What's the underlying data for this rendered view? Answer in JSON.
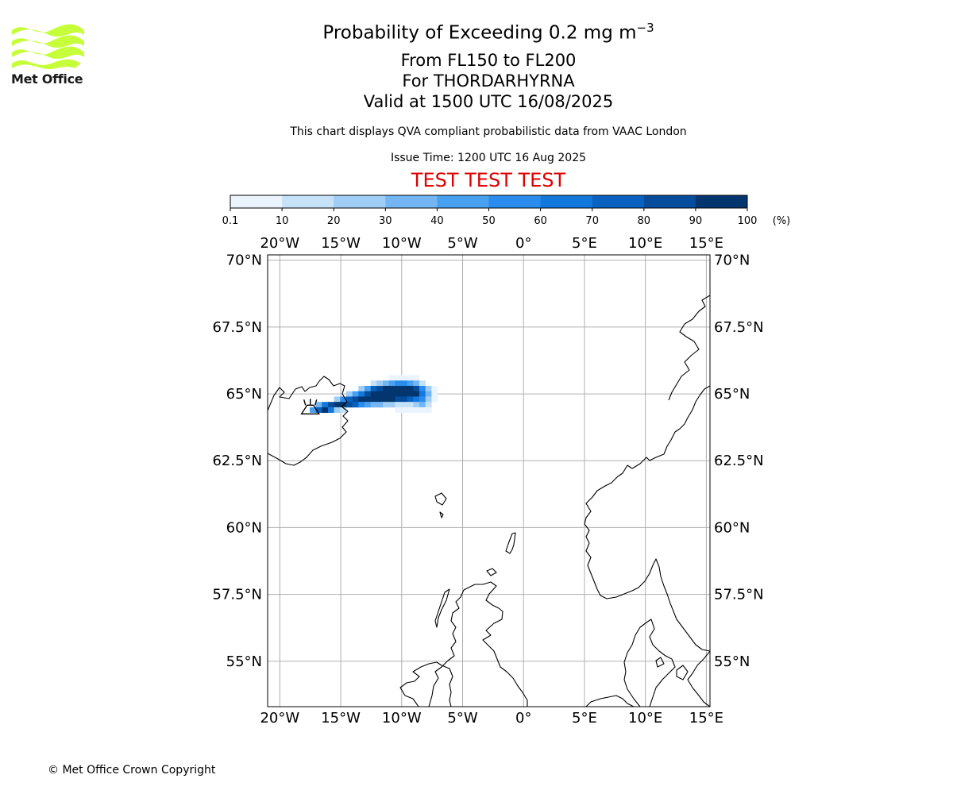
{
  "logo": {
    "name": "Met Office",
    "color": "#c6ff3a"
  },
  "titles": {
    "main": "Probability of Exceeding 0.2 mg m",
    "main_sup": "−3",
    "levels": "From FL150 to FL200",
    "volcano": "For THORDARHYRNA",
    "valid": "Valid at 1500 UTC 16/08/2025",
    "subtitle": "This chart displays QVA compliant probabilistic data from VAAC London",
    "issue": "Issue Time: 1200 UTC 16 Aug 2025",
    "test": "TEST TEST TEST"
  },
  "colorbar": {
    "ticks": [
      "0.1",
      "10",
      "20",
      "30",
      "40",
      "50",
      "60",
      "70",
      "80",
      "90",
      "100"
    ],
    "unit": "(%)",
    "colors": [
      "#ebf4fd",
      "#c6e2f9",
      "#9fcdf6",
      "#73b6f3",
      "#48a0f0",
      "#2a8ced",
      "#1378dc",
      "#0a62c0",
      "#064c9c",
      "#03366f"
    ]
  },
  "chart_data": {
    "type": "heatmap",
    "projection": "equirectangular",
    "lon_range": [
      -21,
      15.3
    ],
    "lat_range": [
      53.3,
      70.2
    ],
    "lon_ticks": [
      "20°W",
      "15°W",
      "10°W",
      "5°W",
      "0°",
      "5°E",
      "10°E",
      "15°E"
    ],
    "lon_tick_values": [
      -20,
      -15,
      -10,
      -5,
      0,
      5,
      10,
      15
    ],
    "lat_ticks": [
      "70°N",
      "67.5°N",
      "65°N",
      "62.5°N",
      "60°N",
      "57.5°N",
      "55°N"
    ],
    "lat_tick_values": [
      70,
      67.5,
      65,
      62.5,
      60,
      57.5,
      55
    ],
    "grid": true,
    "volcano": {
      "lon": -17.5,
      "lat": 64.4
    },
    "cells_unit": "probability %",
    "cell_size_deg": [
      0.5,
      0.2
    ],
    "cells": [
      [
        -10.8,
        65.6,
        5
      ],
      [
        -10.3,
        65.6,
        5
      ],
      [
        -9.8,
        65.6,
        5
      ],
      [
        -9.3,
        65.6,
        5
      ],
      [
        -8.8,
        65.6,
        5
      ],
      [
        -12.3,
        65.4,
        15
      ],
      [
        -11.8,
        65.4,
        25
      ],
      [
        -11.3,
        65.4,
        35
      ],
      [
        -10.8,
        65.4,
        45
      ],
      [
        -10.3,
        65.4,
        55
      ],
      [
        -9.8,
        65.4,
        55
      ],
      [
        -9.3,
        65.4,
        45
      ],
      [
        -8.8,
        65.4,
        35
      ],
      [
        -8.3,
        65.4,
        15
      ],
      [
        -13.3,
        65.2,
        25
      ],
      [
        -12.8,
        65.2,
        45
      ],
      [
        -12.3,
        65.2,
        75
      ],
      [
        -11.8,
        65.2,
        85
      ],
      [
        -11.3,
        65.2,
        95
      ],
      [
        -10.8,
        65.2,
        95
      ],
      [
        -10.3,
        65.2,
        95
      ],
      [
        -9.8,
        65.2,
        95
      ],
      [
        -9.3,
        65.2,
        95
      ],
      [
        -8.8,
        65.2,
        85
      ],
      [
        -8.3,
        65.2,
        55
      ],
      [
        -7.8,
        65.2,
        25
      ],
      [
        -7.3,
        65.2,
        5
      ],
      [
        -14.3,
        65.0,
        25
      ],
      [
        -13.8,
        65.0,
        45
      ],
      [
        -13.3,
        65.0,
        65
      ],
      [
        -12.8,
        65.0,
        85
      ],
      [
        -12.3,
        65.0,
        95
      ],
      [
        -11.8,
        65.0,
        95
      ],
      [
        -11.3,
        65.0,
        95
      ],
      [
        -10.8,
        65.0,
        95
      ],
      [
        -10.3,
        65.0,
        95
      ],
      [
        -9.8,
        65.0,
        95
      ],
      [
        -9.3,
        65.0,
        95
      ],
      [
        -8.8,
        65.0,
        95
      ],
      [
        -8.3,
        65.0,
        65
      ],
      [
        -7.8,
        65.0,
        35
      ],
      [
        -7.3,
        65.0,
        5
      ],
      [
        -15.3,
        64.8,
        25
      ],
      [
        -14.8,
        64.8,
        55
      ],
      [
        -14.3,
        64.8,
        75
      ],
      [
        -13.8,
        64.8,
        85
      ],
      [
        -13.3,
        64.8,
        95
      ],
      [
        -12.8,
        64.8,
        95
      ],
      [
        -12.3,
        64.8,
        95
      ],
      [
        -11.8,
        64.8,
        95
      ],
      [
        -11.3,
        64.8,
        95
      ],
      [
        -10.8,
        64.8,
        95
      ],
      [
        -10.3,
        64.8,
        85
      ],
      [
        -9.8,
        64.8,
        85
      ],
      [
        -9.3,
        64.8,
        75
      ],
      [
        -8.8,
        64.8,
        65
      ],
      [
        -8.3,
        64.8,
        55
      ],
      [
        -7.8,
        64.8,
        25
      ],
      [
        -7.3,
        64.8,
        5
      ],
      [
        -16.8,
        64.6,
        35
      ],
      [
        -16.3,
        64.6,
        65
      ],
      [
        -15.8,
        64.6,
        85
      ],
      [
        -15.3,
        64.6,
        95
      ],
      [
        -14.8,
        64.6,
        95
      ],
      [
        -14.3,
        64.6,
        85
      ],
      [
        -13.8,
        64.6,
        75
      ],
      [
        -13.3,
        64.6,
        55
      ],
      [
        -12.8,
        64.6,
        45
      ],
      [
        -12.3,
        64.6,
        35
      ],
      [
        -11.8,
        64.6,
        35
      ],
      [
        -11.3,
        64.6,
        25
      ],
      [
        -10.8,
        64.6,
        25
      ],
      [
        -10.3,
        64.6,
        15
      ],
      [
        -9.8,
        64.6,
        15
      ],
      [
        -9.3,
        64.6,
        15
      ],
      [
        -8.8,
        64.6,
        25
      ],
      [
        -8.3,
        64.6,
        35
      ],
      [
        -7.8,
        64.6,
        15
      ],
      [
        -17.3,
        64.4,
        45
      ],
      [
        -16.8,
        64.4,
        75
      ],
      [
        -16.3,
        64.4,
        95
      ],
      [
        -15.8,
        64.4,
        65
      ],
      [
        -15.3,
        64.4,
        25
      ],
      [
        -14.8,
        64.4,
        15
      ],
      [
        -10.3,
        64.4,
        5
      ],
      [
        -9.8,
        64.4,
        5
      ],
      [
        -9.3,
        64.4,
        5
      ],
      [
        -8.8,
        64.4,
        5
      ],
      [
        -8.3,
        64.4,
        5
      ],
      [
        -7.8,
        64.4,
        5
      ]
    ]
  },
  "footer": "© Met Office Crown Copyright"
}
